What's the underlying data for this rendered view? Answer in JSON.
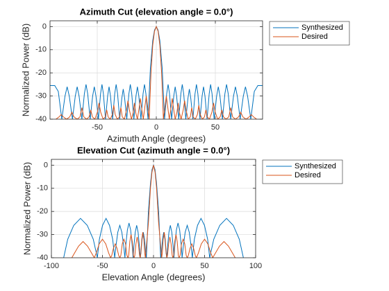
{
  "chart_data": [
    {
      "type": "line",
      "title": "Azimuth Cut (elevation angle = 0.0°)",
      "xlabel": "Azimuth Angle (degrees)",
      "ylabel": "Normalized Power (dB)",
      "xlim": [
        -90,
        90
      ],
      "ylim": [
        -40,
        2.5
      ],
      "xticks": [
        -50,
        0,
        50
      ],
      "yticks": [
        -40,
        -30,
        -20,
        -10,
        0
      ],
      "grid": true,
      "legend": "northeastoutside",
      "series": [
        {
          "name": "Synthesized",
          "color": "#0072BD",
          "x": [
            -90,
            -86,
            -83,
            -80,
            -77.3,
            -75.5,
            -73.7,
            -71,
            -68.6,
            -67,
            -65.4,
            -63,
            -60.9,
            -59.5,
            -58.1,
            -56,
            -53.9,
            -52.5,
            -51.1,
            -49,
            -47.2,
            -46,
            -44.8,
            -43,
            -41.2,
            -40,
            -38.8,
            -37,
            -35.2,
            -34,
            -32.8,
            -31,
            -29.2,
            -28,
            -26.8,
            -25,
            -23.2,
            -22,
            -20.8,
            -19,
            -17.2,
            -16,
            -14.8,
            -13,
            -11.2,
            -10,
            -8.8,
            -7,
            -5,
            -3,
            -1.5,
            0,
            1.5,
            3,
            5,
            7,
            8.8,
            10,
            11.2,
            13,
            14.8,
            16,
            17.2,
            19,
            20.8,
            22,
            23.2,
            25,
            26.8,
            28,
            29.2,
            31,
            32.8,
            34,
            35.2,
            37,
            38.8,
            40,
            41.2,
            43,
            44.8,
            46,
            47.2,
            49,
            51.1,
            52.5,
            53.9,
            56,
            58.1,
            59.5,
            60.9,
            63,
            65.4,
            67,
            68.6,
            71,
            73.7,
            75.5,
            77.3,
            80,
            83,
            86,
            90
          ],
          "values": [
            -25.5,
            -25.5,
            -28,
            -40,
            -30,
            -26,
            -30,
            -40,
            -30,
            -26,
            -30,
            -40,
            -29,
            -25,
            -29,
            -40,
            -30,
            -26,
            -30,
            -40,
            -29,
            -25,
            -29,
            -40,
            -30,
            -26,
            -30,
            -40,
            -29,
            -25,
            -29,
            -40,
            -31,
            -27,
            -31,
            -40,
            -29,
            -25,
            -29,
            -40,
            -30,
            -26,
            -30,
            -40,
            -29,
            -25,
            -29,
            -40,
            -18,
            -6,
            -1.5,
            0,
            -1.5,
            -6,
            -18,
            -40,
            -29,
            -25,
            -29,
            -40,
            -30,
            -26,
            -30,
            -40,
            -29,
            -25,
            -29,
            -40,
            -31,
            -27,
            -31,
            -40,
            -29,
            -25,
            -29,
            -40,
            -30,
            -26,
            -30,
            -40,
            -29,
            -25,
            -29,
            -40,
            -30,
            -26,
            -30,
            -40,
            -29,
            -25,
            -29,
            -40,
            -30,
            -26,
            -30,
            -40,
            -30,
            -26,
            -30,
            -40,
            -28,
            -25.5,
            -25.5
          ]
        },
        {
          "name": "Desired",
          "color": "#D95319",
          "x": [
            -85,
            -82.3,
            -80.5,
            -78.7,
            -76,
            -73.3,
            -71.5,
            -69.7,
            -67,
            -64.6,
            -63,
            -61.4,
            -59,
            -56.9,
            -55.5,
            -54.1,
            -52,
            -49.9,
            -48.5,
            -47.1,
            -45,
            -43.2,
            -42,
            -40.8,
            -39,
            -37.2,
            -36,
            -34.8,
            -33,
            -31.2,
            -30,
            -28.8,
            -27,
            -25.2,
            -24,
            -22.8,
            -21,
            -19.5,
            -18.5,
            -17.5,
            -16,
            -14.5,
            -13.5,
            -12.5,
            -11,
            -9.5,
            -8.5,
            -7.5,
            -6,
            -4.5,
            -3,
            -1.5,
            0,
            1.5,
            3,
            4.5,
            6,
            7.5,
            8.5,
            9.5,
            11,
            12.5,
            13.5,
            14.5,
            16,
            17.5,
            18.5,
            19.5,
            21,
            22.8,
            24,
            25.2,
            27,
            28.8,
            30,
            31.2,
            33,
            34.8,
            36,
            37.2,
            39,
            40.8,
            42,
            43.2,
            45,
            47.1,
            48.5,
            49.9,
            52,
            54.1,
            55.5,
            56.9,
            59,
            61.4,
            63,
            64.6,
            67,
            69.7,
            71.5,
            73.3,
            76,
            78.7,
            80.5,
            82.3,
            85
          ],
          "values": [
            -40,
            -39,
            -38,
            -39,
            -40,
            -39,
            -37,
            -39,
            -40,
            -39,
            -35,
            -39,
            -40,
            -39,
            -36,
            -39,
            -40,
            -37,
            -33,
            -37,
            -40,
            -39,
            -36,
            -39,
            -40,
            -38,
            -34,
            -38,
            -40,
            -39,
            -35,
            -39,
            -40,
            -36,
            -32,
            -36,
            -40,
            -37,
            -33,
            -37,
            -40,
            -35,
            -31,
            -35,
            -40,
            -34,
            -30,
            -34,
            -40,
            -20,
            -8,
            -2,
            0,
            -2,
            -8,
            -20,
            -40,
            -34,
            -30,
            -34,
            -40,
            -35,
            -31,
            -35,
            -40,
            -37,
            -33,
            -37,
            -40,
            -36,
            -32,
            -36,
            -40,
            -39,
            -35,
            -39,
            -40,
            -38,
            -34,
            -38,
            -40,
            -39,
            -36,
            -39,
            -40,
            -37,
            -33,
            -37,
            -40,
            -39,
            -36,
            -39,
            -40,
            -39,
            -35,
            -39,
            -40,
            -39,
            -37,
            -39,
            -40,
            -39,
            -38,
            -39,
            -40
          ]
        }
      ]
    },
    {
      "type": "line",
      "title": "Elevation Cut (azimuth angle = 0.0°)",
      "xlabel": "Elevation Angle (degrees)",
      "ylabel": "Normalized Power (dB)",
      "xlim": [
        -100,
        100
      ],
      "ylim": [
        -40,
        2.5
      ],
      "xticks": [
        -100,
        -50,
        0,
        50,
        100
      ],
      "yticks": [
        -40,
        -30,
        -20,
        -10,
        0
      ],
      "grid": true,
      "legend": "northeastoutside",
      "series": [
        {
          "name": "Synthesized",
          "color": "#0072BD",
          "x": [
            -88,
            -84,
            -78.1,
            -71.5,
            -64.9,
            -59,
            -55,
            -53,
            -49.9,
            -46.5,
            -43.1,
            -40,
            -38,
            -36.8,
            -35,
            -33,
            -31,
            -29.2,
            -28,
            -27,
            -25.6,
            -24,
            -22.4,
            -21,
            -20,
            -19.2,
            -17.9,
            -16.5,
            -15.1,
            -13.8,
            -13,
            -12.3,
            -11.2,
            -10,
            -8.8,
            -7.7,
            -7,
            -5,
            -3,
            -1.5,
            0,
            1.5,
            3,
            5,
            7,
            7.7,
            8.8,
            10,
            11.2,
            12.3,
            13,
            13.8,
            15.1,
            16.5,
            17.9,
            19.2,
            20,
            21,
            22.4,
            24,
            25.6,
            27,
            28,
            29.2,
            31,
            33,
            35,
            36.8,
            38,
            40,
            43.1,
            46.5,
            49.9,
            53,
            55,
            59,
            64.9,
            71.5,
            78.1,
            84,
            88
          ],
          "values": [
            -40,
            -32,
            -26,
            -23,
            -26,
            -32,
            -40,
            -32,
            -26,
            -23,
            -26,
            -32,
            -40,
            -35,
            -29,
            -26,
            -29,
            -35,
            -40,
            -34,
            -28,
            -25,
            -28,
            -34,
            -40,
            -35,
            -29,
            -26,
            -29,
            -35,
            -40,
            -38,
            -32,
            -29,
            -32,
            -38,
            -40,
            -20,
            -8,
            -2,
            0,
            -2,
            -8,
            -20,
            -40,
            -38,
            -32,
            -29,
            -32,
            -38,
            -40,
            -35,
            -29,
            -26,
            -29,
            -35,
            -40,
            -34,
            -28,
            -25,
            -28,
            -34,
            -40,
            -35,
            -29,
            -26,
            -29,
            -35,
            -40,
            -32,
            -26,
            -23,
            -26,
            -32,
            -40,
            -32,
            -26,
            -23,
            -26,
            -32,
            -40
          ]
        },
        {
          "name": "Desired",
          "color": "#D95319",
          "x": [
            -80,
            -77.4,
            -73.4,
            -69,
            -64.6,
            -60.6,
            -58,
            -56.1,
            -53.2,
            -50,
            -46.8,
            -43.9,
            -42,
            -40.9,
            -39.3,
            -37.5,
            -35.7,
            -34.1,
            -33,
            -32,
            -30.6,
            -29,
            -27.4,
            -26,
            -25,
            -24.3,
            -23.2,
            -22,
            -20.8,
            -19.7,
            -19,
            -18.3,
            -17.2,
            -16,
            -14.8,
            -13.7,
            -13,
            -12.4,
            -11.5,
            -10.5,
            -9.5,
            -8.6,
            -8,
            -5,
            -3,
            -1.5,
            0,
            1.5,
            3,
            5,
            8,
            8.6,
            9.5,
            10.5,
            11.5,
            12.4,
            13,
            13.7,
            14.8,
            16,
            17.2,
            18.3,
            19,
            19.7,
            20.8,
            22,
            23.2,
            24.3,
            25,
            26,
            27.4,
            29,
            30.6,
            32,
            33,
            34.1,
            35.7,
            37.5,
            39.3,
            40.9,
            42,
            43.9,
            46.8,
            50,
            53.2,
            56.1,
            58,
            60.6,
            64.6,
            69,
            73.4,
            77.4,
            80
          ],
          "values": [
            -40,
            -38,
            -35,
            -33,
            -35,
            -38,
            -40,
            -38,
            -34,
            -32,
            -34,
            -38,
            -40,
            -39,
            -36,
            -34,
            -36,
            -39,
            -40,
            -39,
            -34,
            -32,
            -34,
            -39,
            -40,
            -39,
            -33,
            -30,
            -33,
            -39,
            -40,
            -39,
            -34,
            -31,
            -34,
            -39,
            -40,
            -38,
            -32,
            -29,
            -32,
            -38,
            -40,
            -25,
            -10,
            -3,
            0,
            -3,
            -10,
            -25,
            -40,
            -38,
            -32,
            -29,
            -32,
            -38,
            -40,
            -39,
            -34,
            -31,
            -34,
            -39,
            -40,
            -39,
            -33,
            -30,
            -33,
            -39,
            -40,
            -39,
            -34,
            -32,
            -34,
            -39,
            -40,
            -39,
            -36,
            -34,
            -36,
            -39,
            -40,
            -38,
            -34,
            -32,
            -34,
            -38,
            -40,
            -38,
            -35,
            -33,
            -35,
            -38,
            -40
          ]
        }
      ]
    }
  ]
}
